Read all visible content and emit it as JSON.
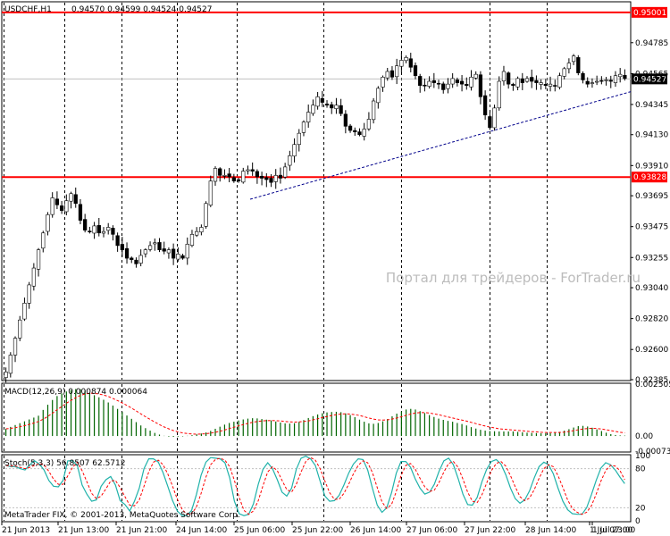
{
  "header": {
    "symbol_text": "USDCHF,H1",
    "ohlc_text": "0.94570 0.94599 0.94524 0.94527"
  },
  "watermark": "Портал для трейдеров - ForTrader.ru",
  "copyright": "MetaTrader FIX, © 2001-2013, MetaQuotes Software Corp.",
  "colors": {
    "background": "#ffffff",
    "level_line": "#ff0000",
    "trend_line": "#00008b",
    "macd_histogram": "#006400",
    "macd_signal": "#ff0000",
    "stoch_main": "#20b2aa",
    "stoch_signal": "#ff0000",
    "candle_bull": "#ffffff",
    "candle_bear": "#000000"
  },
  "chart_data": [
    {
      "type": "candlestick",
      "panel": "price",
      "symbol": "USDCHF",
      "timeframe": "H1",
      "ylim": [
        0.92385,
        0.9507
      ],
      "y_ticks": [
        "0.95001",
        "0.94785",
        "0.94565",
        "0.94345",
        "0.94130",
        "0.93910",
        "0.93828",
        "0.93695",
        "0.93475",
        "0.93255",
        "0.93040",
        "0.92820",
        "0.92600",
        "0.92385"
      ],
      "current_price": "0.94527",
      "levels": [
        {
          "value": 0.95001,
          "label": "0.95001"
        },
        {
          "value": 0.93828,
          "label": "0.93828"
        }
      ],
      "trend_line": {
        "from": [
          "25 Jun 12:00",
          0.9367
        ],
        "to": [
          "1 Jul 23:00",
          0.94436
        ]
      },
      "x_ticks": [
        "21 Jun 2013",
        "21 Jun 13:00",
        "21 Jun 21:00",
        "24 Jun 14:00",
        "25 Jun 06:00",
        "25 Jun 22:00",
        "26 Jun 14:00",
        "27 Jun 06:00",
        "27 Jun 22:00",
        "28 Jun 14:00",
        "1 Jul 07:00",
        "1 Jul 23:00"
      ],
      "path_close": [
        0.9244,
        0.9256,
        0.9268,
        0.9281,
        0.9293,
        0.9306,
        0.9318,
        0.9331,
        0.9343,
        0.9356,
        0.9368,
        0.9363,
        0.9359,
        0.9366,
        0.9371,
        0.9364,
        0.9352,
        0.9345,
        0.9344,
        0.9348,
        0.9343,
        0.9344,
        0.9347,
        0.9342,
        0.9334,
        0.9331,
        0.9325,
        0.9324,
        0.9321,
        0.9327,
        0.9331,
        0.9334,
        0.9336,
        0.9331,
        0.933,
        0.9331,
        0.9325,
        0.9328,
        0.9325,
        0.9335,
        0.9342,
        0.9344,
        0.9347,
        0.9364,
        0.938,
        0.9389,
        0.9384,
        0.9384,
        0.9383,
        0.938,
        0.938,
        0.9387,
        0.9388,
        0.9387,
        0.9383,
        0.9382,
        0.9381,
        0.9379,
        0.9384,
        0.9382,
        0.939,
        0.9398,
        0.9406,
        0.9414,
        0.9422,
        0.9429,
        0.9434,
        0.944,
        0.9436,
        0.9434,
        0.9432,
        0.9434,
        0.9428,
        0.9419,
        0.9416,
        0.9415,
        0.9413,
        0.9417,
        0.9424,
        0.9437,
        0.9446,
        0.9454,
        0.9458,
        0.9454,
        0.9462,
        0.9466,
        0.9468,
        0.9461,
        0.9455,
        0.9448,
        0.9448,
        0.9451,
        0.945,
        0.9449,
        0.9445,
        0.9449,
        0.9453,
        0.945,
        0.9449,
        0.9448,
        0.9454,
        0.9456,
        0.944,
        0.9427,
        0.9418,
        0.9432,
        0.9451,
        0.9458,
        0.9449,
        0.9448,
        0.9453,
        0.945,
        0.9453,
        0.9451,
        0.945,
        0.945,
        0.9448,
        0.9449,
        0.9448,
        0.9455,
        0.946,
        0.9464,
        0.9469,
        0.9457,
        0.9452,
        0.9449,
        0.945,
        0.9451,
        0.9451,
        0.9452,
        0.9451,
        0.9455,
        0.9456,
        0.9453
      ]
    },
    {
      "type": "histogram",
      "panel": "indicator",
      "label": "MACD(12,26,9) 0.000874 0.000064",
      "y_ticks": [
        "0.002505",
        "0.00",
        "-0.00073"
      ],
      "ylim": [
        -0.00073,
        0.002505
      ],
      "series": [
        {
          "name": "MACD",
          "values": [
            0.00035,
            0.00044,
            0.00053,
            0.00062,
            0.00071,
            0.0008,
            0.00089,
            0.00098,
            0.00126,
            0.00151,
            0.00174,
            0.00193,
            0.00206,
            0.00215,
            0.00222,
            0.00227,
            0.00226,
            0.00219,
            0.00208,
            0.00197,
            0.00187,
            0.00175,
            0.00162,
            0.00147,
            0.00131,
            0.00116,
            0.00099,
            0.00083,
            0.00067,
            0.00051,
            0.00038,
            0.00026,
            0.00015,
            7e-05,
            1e-05,
            -3e-05,
            -4e-05,
            -3e-05,
            -2e-05,
            1e-05,
            4e-05,
            8e-05,
            0.00012,
            0.00017,
            0.00025,
            0.00035,
            0.00045,
            0.00055,
            0.00063,
            0.00069,
            0.00075,
            0.0008,
            0.00084,
            0.00086,
            0.00085,
            0.00082,
            0.00079,
            0.00075,
            0.0007,
            0.00065,
            0.00061,
            0.0006,
            0.00062,
            0.00068,
            0.00077,
            0.00087,
            0.00096,
            0.00104,
            0.0011,
            0.00114,
            0.00116,
            0.00117,
            0.00115,
            0.00109,
            0.00101,
            0.00091,
            0.00079,
            0.00069,
            0.00061,
            0.00059,
            0.00063,
            0.00071,
            0.00082,
            0.00095,
            0.00108,
            0.00119,
            0.00128,
            0.00131,
            0.00128,
            0.0012,
            0.00111,
            0.00101,
            0.00092,
            0.00084,
            0.00078,
            0.00073,
            0.00069,
            0.00063,
            0.00058,
            0.00051,
            0.00043,
            0.00036,
            0.0003,
            0.00026,
            0.00024,
            0.00023,
            0.00022,
            0.00022,
            0.00022,
            0.00022,
            0.0002,
            0.00018,
            0.00016,
            0.00015,
            0.00014,
            0.00013,
            0.00013,
            0.00014,
            0.00017,
            0.0002,
            0.00026,
            0.00033,
            0.00041,
            0.00048,
            0.00049,
            0.00046,
            0.0004,
            0.00032,
            0.00024,
            0.00016,
            9e-05,
            5e-05,
            3e-05,
            2e-05
          ]
        },
        {
          "name": "Signal",
          "values": [
            0.00035,
            0.00037,
            0.0004,
            0.00045,
            0.0005,
            0.00056,
            0.00063,
            0.0007,
            0.00081,
            0.00095,
            0.0011,
            0.00127,
            0.00142,
            0.00158,
            0.00172,
            0.00185,
            0.00196,
            0.00203,
            0.00206,
            0.00206,
            0.00203,
            0.00198,
            0.00191,
            0.00181,
            0.00171,
            0.0016,
            0.00148,
            0.00135,
            0.00121,
            0.00107,
            0.00093,
            0.0008,
            0.00067,
            0.00055,
            0.00044,
            0.00035,
            0.00026,
            0.0002,
            0.00015,
            0.00012,
            0.0001,
            9e-05,
            0.0001,
            0.00011,
            0.00014,
            0.00018,
            0.00023,
            0.00029,
            0.00036,
            0.00042,
            0.00049,
            0.00055,
            0.00061,
            0.00066,
            0.0007,
            0.00073,
            0.00074,
            0.00075,
            0.00074,
            0.00073,
            0.0007,
            0.00068,
            0.00067,
            0.00068,
            0.0007,
            0.00073,
            0.00078,
            0.00083,
            0.00089,
            0.00094,
            0.00099,
            0.00103,
            0.00106,
            0.00107,
            0.00106,
            0.00103,
            0.00099,
            0.00093,
            0.00087,
            0.00082,
            0.00078,
            0.00077,
            0.00078,
            0.00082,
            0.00087,
            0.00093,
            0.001,
            0.00106,
            0.00111,
            0.00113,
            0.00113,
            0.00111,
            0.00107,
            0.00103,
            0.00097,
            0.00092,
            0.00087,
            0.00082,
            0.00077,
            0.00072,
            0.00066,
            0.0006,
            0.00054,
            0.00048,
            0.00043,
            0.00039,
            0.00035,
            0.00033,
            0.00031,
            0.00029,
            0.00027,
            0.00025,
            0.00023,
            0.00021,
            0.0002,
            0.00018,
            0.00017,
            0.00017,
            0.00017,
            0.00017,
            0.00019,
            0.00022,
            0.00026,
            0.0003,
            0.00034,
            0.00036,
            0.00037,
            0.00036,
            0.00034,
            0.0003,
            0.00026,
            0.00022,
            0.00018,
            0.00015
          ]
        }
      ]
    },
    {
      "type": "line",
      "panel": "indicator",
      "label": "Stoch(5,3,3) 56.8507 62.5712",
      "y_ticks": [
        "100",
        "80",
        "20",
        "0"
      ],
      "levels": [
        80,
        20
      ],
      "ylim": [
        0,
        100
      ],
      "series": [
        {
          "name": "Main",
          "values": [
            85,
            83,
            83,
            80,
            78,
            86,
            92,
            87,
            78,
            62,
            53,
            52,
            62,
            92,
            92,
            85,
            55,
            41,
            30,
            32,
            53,
            63,
            68,
            55,
            31,
            25,
            15,
            30,
            50,
            80,
            95,
            95,
            90,
            74,
            53,
            31,
            15,
            8,
            8,
            16,
            40,
            70,
            90,
            97,
            96,
            95,
            89,
            66,
            30,
            11,
            8,
            10,
            26,
            56,
            79,
            89,
            80,
            63,
            44,
            38,
            50,
            79,
            96,
            99,
            95,
            85,
            61,
            38,
            30,
            31,
            39,
            55,
            73,
            87,
            95,
            94,
            78,
            50,
            24,
            13,
            20,
            43,
            73,
            91,
            91,
            82,
            64,
            50,
            41,
            44,
            56,
            76,
            92,
            96,
            86,
            65,
            41,
            25,
            24,
            36,
            60,
            79,
            91,
            94,
            87,
            71,
            50,
            34,
            27,
            32,
            46,
            66,
            83,
            90,
            86,
            72,
            50,
            30,
            17,
            11,
            10,
            10,
            20,
            40,
            62,
            81,
            89,
            86,
            78,
            67,
            57
          ]
        },
        {
          "name": "Signal",
          "values": [
            85,
            84,
            84,
            82,
            80,
            82,
            85,
            88,
            86,
            76,
            64,
            56,
            56,
            69,
            82,
            90,
            77,
            60,
            42,
            34,
            38,
            49,
            61,
            62,
            51,
            37,
            24,
            23,
            32,
            53,
            75,
            90,
            93,
            86,
            72,
            53,
            33,
            18,
            10,
            11,
            21,
            42,
            67,
            86,
            94,
            96,
            93,
            83,
            62,
            36,
            16,
            10,
            15,
            31,
            54,
            75,
            83,
            77,
            62,
            48,
            44,
            56,
            75,
            91,
            97,
            93,
            80,
            61,
            43,
            33,
            33,
            42,
            56,
            72,
            85,
            92,
            89,
            74,
            51,
            29,
            19,
            25,
            45,
            69,
            85,
            88,
            79,
            65,
            52,
            45,
            47,
            59,
            75,
            88,
            91,
            82,
            64,
            44,
            30,
            28,
            40,
            58,
            77,
            88,
            91,
            84,
            69,
            52,
            37,
            31,
            35,
            48,
            65,
            80,
            86,
            83,
            69,
            51,
            32,
            19,
            13,
            10,
            13,
            23,
            41,
            61,
            77,
            85,
            84,
            77,
            63
          ]
        }
      ]
    }
  ]
}
